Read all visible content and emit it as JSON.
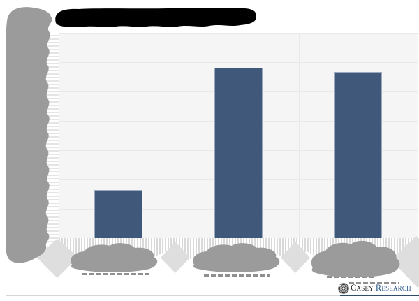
{
  "footer": {
    "logo_word1": "Casey",
    "logo_word2": "Research"
  },
  "colors": {
    "bar": "#40597b",
    "bar_border": "#9aa9bd",
    "plot_bg": "#f5f5f5",
    "gridline": "#e9e9e9",
    "redaction_dark": "#9b9b9b",
    "redaction_light": "#dedede",
    "logo_casey": "#1b1b1b",
    "logo_research": "#2c5a8c",
    "footer_rule": "#d6d6d6",
    "footer_rule_navy": "#2e4d6b"
  },
  "chart_data": {
    "type": "bar",
    "title": "[redacted — covered by black blob]",
    "categories": [
      "[redacted]",
      "[redacted]",
      "[redacted]"
    ],
    "values": [
      1.64,
      5.81,
      5.67
    ],
    "value_unit": "y-axis gridline divisions (tick labels covered by gray blob)",
    "ylim": [
      0,
      7
    ],
    "grid": true,
    "legend": false,
    "bar_color": "#40597b",
    "plot_background": "#f5f5f5",
    "attribution": "Casey Research"
  }
}
